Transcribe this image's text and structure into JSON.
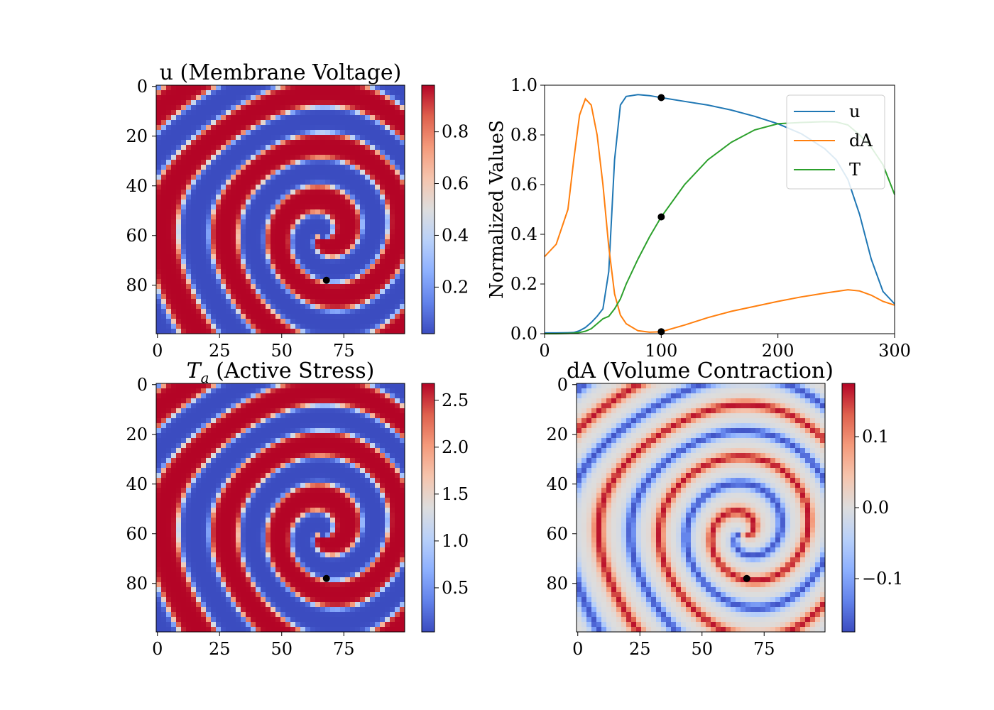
{
  "figure": {
    "panels": {
      "u_map": {
        "title": "u (Membrane Voltage)"
      },
      "trace": {
        "title": ""
      },
      "ta_map": {
        "title_symbol": "T",
        "title_subscript": "a",
        "title_rest": " (Active Stress)"
      },
      "da_map": {
        "title": "dA (Volume Contraction)"
      }
    }
  },
  "chart_data": [
    {
      "id": "u_map",
      "type": "heatmap",
      "title": "u (Membrane Voltage)",
      "colormap": "coolwarm",
      "grid_size": [
        100,
        100
      ],
      "x_ticks": [
        0,
        25,
        50,
        75
      ],
      "y_ticks": [
        0,
        20,
        40,
        60,
        80
      ],
      "color_range": [
        0.02,
        0.98
      ],
      "colorbar_ticks": [
        0.2,
        0.4,
        0.6,
        0.8
      ],
      "marker": {
        "x": 68,
        "y": 78
      }
    },
    {
      "id": "trace",
      "type": "line",
      "xlabel": "",
      "ylabel": "Normalized ValueS",
      "xlim": [
        0,
        300
      ],
      "ylim": [
        0,
        1.0
      ],
      "x_ticks": [
        0,
        100,
        200,
        300
      ],
      "y_ticks": [
        0.0,
        0.2,
        0.4,
        0.6,
        0.8,
        1.0
      ],
      "legend_position": "top-right",
      "x": [
        0,
        10,
        20,
        25,
        30,
        35,
        40,
        45,
        50,
        55,
        60,
        65,
        70,
        80,
        90,
        100,
        120,
        140,
        160,
        180,
        200,
        220,
        240,
        250,
        260,
        270,
        280,
        290,
        300
      ],
      "series": [
        {
          "name": "u",
          "color": "#1f77b4",
          "values": [
            0.003,
            0.003,
            0.004,
            0.005,
            0.012,
            0.025,
            0.045,
            0.07,
            0.1,
            0.25,
            0.7,
            0.92,
            0.955,
            0.962,
            0.958,
            0.95,
            0.935,
            0.92,
            0.9,
            0.875,
            0.845,
            0.805,
            0.745,
            0.7,
            0.62,
            0.48,
            0.3,
            0.17,
            0.12
          ]
        },
        {
          "name": "dA",
          "color": "#ff7f0e",
          "values": [
            0.31,
            0.36,
            0.5,
            0.7,
            0.88,
            0.945,
            0.92,
            0.8,
            0.6,
            0.35,
            0.16,
            0.075,
            0.04,
            0.012,
            0.006,
            0.008,
            0.035,
            0.065,
            0.09,
            0.11,
            0.13,
            0.148,
            0.163,
            0.17,
            0.177,
            0.172,
            0.155,
            0.13,
            0.115
          ]
        },
        {
          "name": "T",
          "color": "#2ca02c",
          "values": [
            0.0,
            0.0,
            0.001,
            0.002,
            0.005,
            0.01,
            0.02,
            0.04,
            0.06,
            0.07,
            0.1,
            0.14,
            0.2,
            0.3,
            0.39,
            0.47,
            0.6,
            0.7,
            0.77,
            0.82,
            0.845,
            0.85,
            0.853,
            0.852,
            0.84,
            0.8,
            0.75,
            0.68,
            0.56
          ]
        }
      ],
      "markers": [
        {
          "x": 100,
          "y": 0.95
        },
        {
          "x": 100,
          "y": 0.47
        },
        {
          "x": 100,
          "y": 0.008
        }
      ]
    },
    {
      "id": "ta_map",
      "type": "heatmap",
      "title": "Ta (Active Stress)",
      "colormap": "coolwarm",
      "grid_size": [
        100,
        100
      ],
      "x_ticks": [
        0,
        25,
        50,
        75
      ],
      "y_ticks": [
        0,
        20,
        40,
        60,
        80
      ],
      "color_range": [
        0.03,
        2.68
      ],
      "colorbar_ticks": [
        0.5,
        1.0,
        1.5,
        2.0,
        2.5
      ],
      "colorbar_tick_labels": [
        "0.5",
        "1.0",
        "1.5",
        "2.0",
        "2.5"
      ],
      "marker": {
        "x": 68,
        "y": 78
      }
    },
    {
      "id": "da_map",
      "type": "heatmap",
      "title": "dA (Volume Contraction)",
      "colormap": "coolwarm",
      "grid_size": [
        100,
        100
      ],
      "x_ticks": [
        0,
        25,
        50,
        75
      ],
      "y_ticks": [
        0,
        20,
        40,
        60,
        80
      ],
      "color_range": [
        -0.175,
        0.175
      ],
      "colorbar_ticks": [
        -0.1,
        0.0,
        0.1
      ],
      "colorbar_tick_labels": [
        "−0.1",
        "0.0",
        "0.1"
      ],
      "marker": {
        "x": 68,
        "y": 78
      }
    }
  ]
}
